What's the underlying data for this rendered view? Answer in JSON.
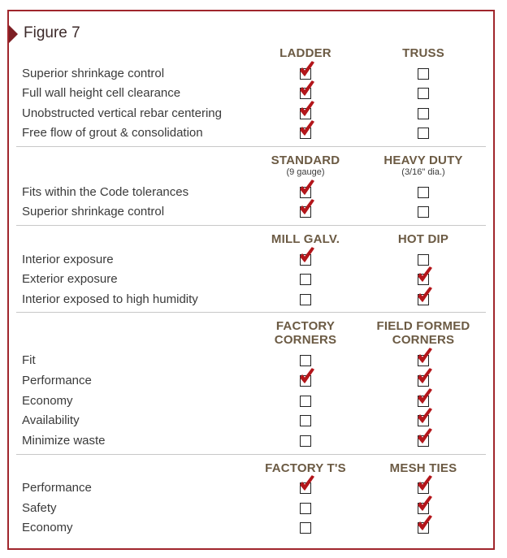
{
  "figure_title": "Figure 7",
  "sections": [
    {
      "columns": [
        {
          "title": "LADDER",
          "subtitle": ""
        },
        {
          "title": "TRUSS",
          "subtitle": ""
        }
      ],
      "rows": [
        {
          "label": "Superior shrinkage control",
          "checks": [
            true,
            false
          ]
        },
        {
          "label": "Full wall height cell clearance",
          "checks": [
            true,
            false
          ]
        },
        {
          "label": "Unobstructed vertical rebar centering",
          "checks": [
            true,
            false
          ]
        },
        {
          "label": "Free flow of grout & consolidation",
          "checks": [
            true,
            false
          ]
        }
      ]
    },
    {
      "columns": [
        {
          "title": "STANDARD",
          "subtitle": "(9 gauge)"
        },
        {
          "title": "HEAVY DUTY",
          "subtitle": "(3/16\" dia.)"
        }
      ],
      "rows": [
        {
          "label": "Fits within the Code tolerances",
          "checks": [
            true,
            false
          ]
        },
        {
          "label": "Superior shrinkage control",
          "checks": [
            true,
            false
          ]
        }
      ]
    },
    {
      "columns": [
        {
          "title": "MILL GALV.",
          "subtitle": ""
        },
        {
          "title": "HOT DIP",
          "subtitle": ""
        }
      ],
      "rows": [
        {
          "label": "Interior exposure",
          "checks": [
            true,
            false
          ]
        },
        {
          "label": "Exterior exposure",
          "checks": [
            false,
            true
          ]
        },
        {
          "label": "Interior exposed to high humidity",
          "checks": [
            false,
            true
          ]
        }
      ]
    },
    {
      "columns": [
        {
          "title": "FACTORY\nCORNERS",
          "subtitle": ""
        },
        {
          "title": "FIELD FORMED\nCORNERS",
          "subtitle": ""
        }
      ],
      "rows": [
        {
          "label": "Fit",
          "checks": [
            false,
            true
          ]
        },
        {
          "label": "Performance",
          "checks": [
            true,
            true
          ]
        },
        {
          "label": "Economy",
          "checks": [
            false,
            true
          ]
        },
        {
          "label": "Availability",
          "checks": [
            false,
            true
          ]
        },
        {
          "label": "Minimize waste",
          "checks": [
            false,
            true
          ]
        }
      ]
    },
    {
      "columns": [
        {
          "title": "FACTORY T'S",
          "subtitle": ""
        },
        {
          "title": "MESH TIES",
          "subtitle": ""
        }
      ],
      "rows": [
        {
          "label": "Performance",
          "checks": [
            true,
            true
          ]
        },
        {
          "label": "Safety",
          "checks": [
            false,
            true
          ]
        },
        {
          "label": "Economy",
          "checks": [
            false,
            true
          ]
        }
      ]
    }
  ],
  "colors": {
    "frame": "#a0262c",
    "check": "#b3161b",
    "header_text": "#6b5a43",
    "label_text": "#3a3a3a"
  }
}
